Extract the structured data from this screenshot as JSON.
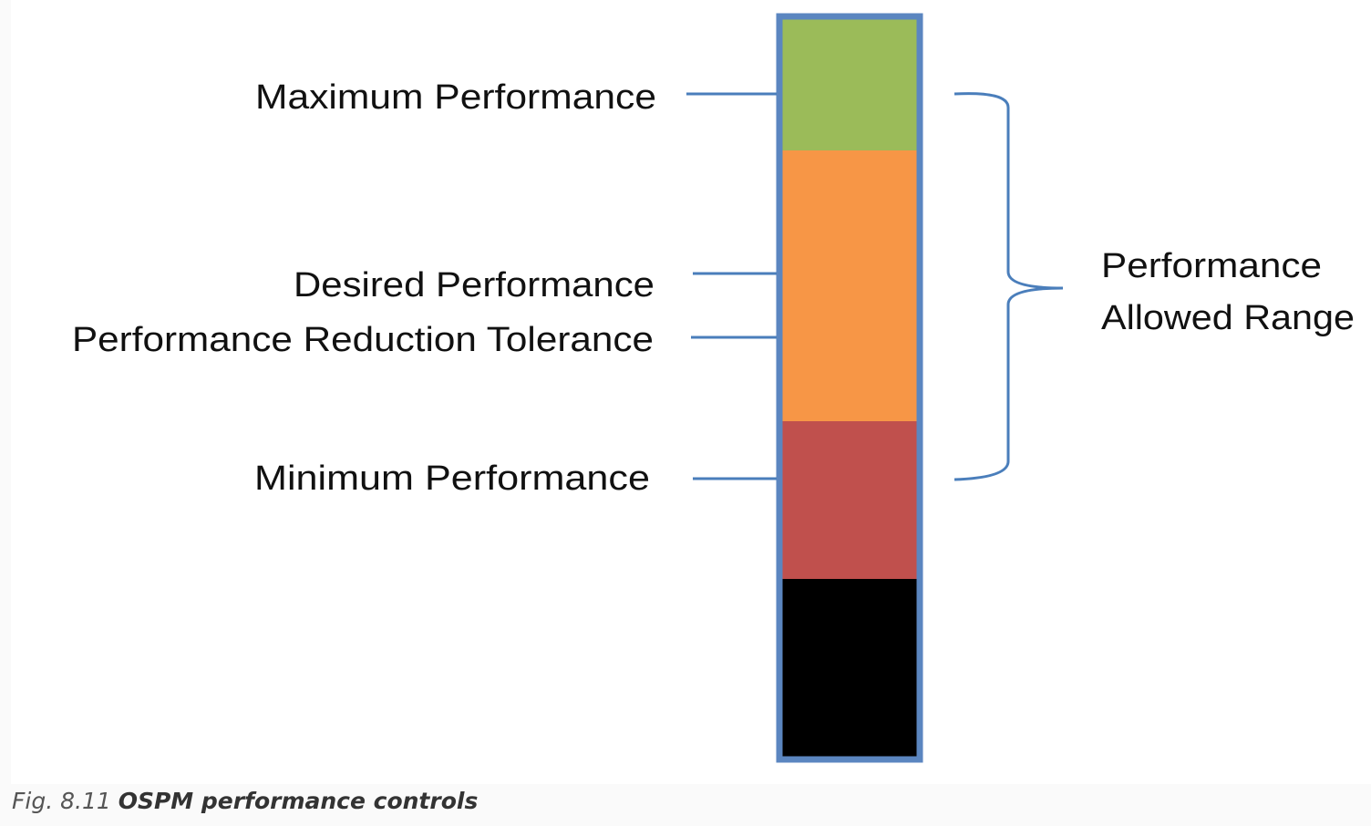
{
  "diagram": {
    "labels": {
      "maximum": "Maximum Performance",
      "desired": "Desired Performance",
      "tolerance": "Performance Reduction Tolerance",
      "minimum": "Minimum Performance"
    },
    "range_label": {
      "line1": "Performance",
      "line2": "Allowed Range"
    },
    "colors": {
      "frame": "#5b86c0",
      "connector": "#4a7ebb",
      "max_segment": "#9bbb59",
      "desired_segment": "#f79646",
      "min_segment": "#c0504d",
      "below_segment": "#000000"
    }
  },
  "caption": {
    "number": "Fig. 8.11",
    "title": "OSPM performance controls"
  }
}
